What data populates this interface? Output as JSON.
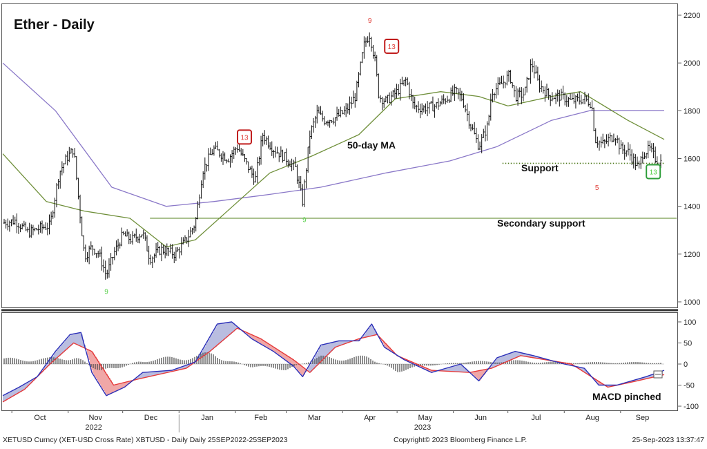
{
  "title": "Ether - Daily",
  "colors": {
    "bars": "#111111",
    "ma50": "#6f8f3a",
    "ma200": "#8a78c8",
    "support": "#4f7a1c",
    "secondary_support": "#5e8a2a",
    "td_sell": "#e0403a",
    "td_buy": "#58d04a",
    "macd_line": "#2b2fb8",
    "signal_line": "#e63b3b",
    "fill_up": "#b9bde0",
    "fill_down": "#f0a7a7",
    "hist": "#444444"
  },
  "footer": {
    "left": "XETUSD Curncy (XET-USD Cross Rate) XBTUSD - Daily  Daily 25SEP2022-25SEP2023",
    "center": "Copyright© 2023 Bloomberg Finance L.P.",
    "right": "25-Sep-2023 13:37:47"
  },
  "annotations": {
    "ma50": "50-day MA",
    "support": "Support",
    "secondary_support": "Secondary support",
    "macd": "MACD pinched"
  },
  "chart_data": [
    {
      "type": "candlestick",
      "title": "Ether - Daily",
      "x_axis": {
        "months": [
          "Oct",
          "Nov",
          "Dec",
          "Jan",
          "Feb",
          "Mar",
          "Apr",
          "May",
          "Jun",
          "Jul",
          "Aug",
          "Sep"
        ],
        "year_labels": [
          {
            "text": "2022",
            "under": "Nov"
          },
          {
            "text": "2023",
            "under": "May"
          }
        ]
      },
      "y_axis": {
        "ticks": [
          1000,
          1200,
          1400,
          1600,
          1800,
          2000,
          2200
        ],
        "range": [
          960,
          2240
        ],
        "side": "right"
      },
      "price_path": [
        {
          "date": "2022-09-26",
          "value": 1330
        },
        {
          "date": "2022-10-03",
          "value": 1340
        },
        {
          "date": "2022-10-10",
          "value": 1290
        },
        {
          "date": "2022-10-17",
          "value": 1310
        },
        {
          "date": "2022-10-22",
          "value": 1320
        },
        {
          "date": "2022-10-27",
          "value": 1540
        },
        {
          "date": "2022-10-31",
          "value": 1600
        },
        {
          "date": "2022-11-04",
          "value": 1640
        },
        {
          "date": "2022-11-08",
          "value": 1330
        },
        {
          "date": "2022-11-10",
          "value": 1190
        },
        {
          "date": "2022-11-14",
          "value": 1230
        },
        {
          "date": "2022-11-18",
          "value": 1200
        },
        {
          "date": "2022-11-22",
          "value": 1110
        },
        {
          "date": "2022-11-26",
          "value": 1200
        },
        {
          "date": "2022-12-01",
          "value": 1280
        },
        {
          "date": "2022-12-06",
          "value": 1260
        },
        {
          "date": "2022-12-12",
          "value": 1290
        },
        {
          "date": "2022-12-16",
          "value": 1180
        },
        {
          "date": "2022-12-22",
          "value": 1220
        },
        {
          "date": "2022-12-30",
          "value": 1200
        },
        {
          "date": "2023-01-05",
          "value": 1260
        },
        {
          "date": "2023-01-10",
          "value": 1330
        },
        {
          "date": "2023-01-14",
          "value": 1550
        },
        {
          "date": "2023-01-20",
          "value": 1640
        },
        {
          "date": "2023-01-28",
          "value": 1600
        },
        {
          "date": "2023-02-02",
          "value": 1650
        },
        {
          "date": "2023-02-09",
          "value": 1550
        },
        {
          "date": "2023-02-12",
          "value": 1510
        },
        {
          "date": "2023-02-16",
          "value": 1700
        },
        {
          "date": "2023-02-22",
          "value": 1640
        },
        {
          "date": "2023-03-01",
          "value": 1600
        },
        {
          "date": "2023-03-06",
          "value": 1560
        },
        {
          "date": "2023-03-10",
          "value": 1420
        },
        {
          "date": "2023-03-14",
          "value": 1700
        },
        {
          "date": "2023-03-18",
          "value": 1790
        },
        {
          "date": "2023-03-22",
          "value": 1760
        },
        {
          "date": "2023-03-28",
          "value": 1770
        },
        {
          "date": "2023-04-03",
          "value": 1800
        },
        {
          "date": "2023-04-08",
          "value": 1860
        },
        {
          "date": "2023-04-13",
          "value": 2080
        },
        {
          "date": "2023-04-16",
          "value": 2120
        },
        {
          "date": "2023-04-19",
          "value": 2000
        },
        {
          "date": "2023-04-21",
          "value": 1860
        },
        {
          "date": "2023-04-25",
          "value": 1840
        },
        {
          "date": "2023-05-01",
          "value": 1880
        },
        {
          "date": "2023-05-06",
          "value": 1930
        },
        {
          "date": "2023-05-10",
          "value": 1820
        },
        {
          "date": "2023-05-15",
          "value": 1810
        },
        {
          "date": "2023-05-22",
          "value": 1820
        },
        {
          "date": "2023-05-28",
          "value": 1850
        },
        {
          "date": "2023-06-02",
          "value": 1880
        },
        {
          "date": "2023-06-06",
          "value": 1850
        },
        {
          "date": "2023-06-10",
          "value": 1750
        },
        {
          "date": "2023-06-15",
          "value": 1650
        },
        {
          "date": "2023-06-20",
          "value": 1740
        },
        {
          "date": "2023-06-22",
          "value": 1880
        },
        {
          "date": "2023-06-26",
          "value": 1900
        },
        {
          "date": "2023-07-02",
          "value": 1950
        },
        {
          "date": "2023-07-05",
          "value": 1860
        },
        {
          "date": "2023-07-10",
          "value": 1870
        },
        {
          "date": "2023-07-14",
          "value": 2000
        },
        {
          "date": "2023-07-18",
          "value": 1910
        },
        {
          "date": "2023-07-24",
          "value": 1860
        },
        {
          "date": "2023-07-30",
          "value": 1860
        },
        {
          "date": "2023-08-05",
          "value": 1840
        },
        {
          "date": "2023-08-12",
          "value": 1850
        },
        {
          "date": "2023-08-16",
          "value": 1830
        },
        {
          "date": "2023-08-18",
          "value": 1680
        },
        {
          "date": "2023-08-22",
          "value": 1660
        },
        {
          "date": "2023-08-29",
          "value": 1700
        },
        {
          "date": "2023-09-01",
          "value": 1640
        },
        {
          "date": "2023-09-05",
          "value": 1630
        },
        {
          "date": "2023-09-11",
          "value": 1560
        },
        {
          "date": "2023-09-13",
          "value": 1620
        },
        {
          "date": "2023-09-17",
          "value": 1640
        },
        {
          "date": "2023-09-21",
          "value": 1590
        },
        {
          "date": "2023-09-25",
          "value": 1585
        }
      ],
      "ma50_path": [
        {
          "date": "2022-09-26",
          "value": 1620
        },
        {
          "date": "2022-10-20",
          "value": 1420
        },
        {
          "date": "2022-11-10",
          "value": 1380
        },
        {
          "date": "2022-12-05",
          "value": 1350
        },
        {
          "date": "2022-12-25",
          "value": 1230
        },
        {
          "date": "2023-01-10",
          "value": 1260
        },
        {
          "date": "2023-02-01",
          "value": 1410
        },
        {
          "date": "2023-02-20",
          "value": 1540
        },
        {
          "date": "2023-03-15",
          "value": 1610
        },
        {
          "date": "2023-04-10",
          "value": 1700
        },
        {
          "date": "2023-04-30",
          "value": 1850
        },
        {
          "date": "2023-05-25",
          "value": 1880
        },
        {
          "date": "2023-06-15",
          "value": 1860
        },
        {
          "date": "2023-07-01",
          "value": 1820
        },
        {
          "date": "2023-07-25",
          "value": 1860
        },
        {
          "date": "2023-08-10",
          "value": 1880
        },
        {
          "date": "2023-09-05",
          "value": 1760
        },
        {
          "date": "2023-09-25",
          "value": 1680
        }
      ],
      "ma200_path": [
        {
          "date": "2022-09-26",
          "value": 2000
        },
        {
          "date": "2022-10-25",
          "value": 1800
        },
        {
          "date": "2022-11-25",
          "value": 1480
        },
        {
          "date": "2022-12-25",
          "value": 1400
        },
        {
          "date": "2023-01-20",
          "value": 1420
        },
        {
          "date": "2023-02-20",
          "value": 1450
        },
        {
          "date": "2023-03-20",
          "value": 1480
        },
        {
          "date": "2023-04-25",
          "value": 1540
        },
        {
          "date": "2023-05-30",
          "value": 1590
        },
        {
          "date": "2023-06-25",
          "value": 1650
        },
        {
          "date": "2023-07-25",
          "value": 1760
        },
        {
          "date": "2023-08-15",
          "value": 1800
        },
        {
          "date": "2023-09-25",
          "value": 1800
        }
      ],
      "levels": [
        {
          "label": "Support",
          "value": 1580,
          "style": "dotted",
          "from": "2023-06-28"
        },
        {
          "label": "Secondary support",
          "value": 1350,
          "style": "solid",
          "from": "2022-12-16"
        }
      ],
      "td_sequential_markers": [
        {
          "label": "13",
          "date": "2023-02-06",
          "value": 1690,
          "color": "sell",
          "boxed": true
        },
        {
          "label": "13",
          "date": "2023-04-28",
          "value": 2070,
          "color": "sell",
          "boxed": true
        },
        {
          "label": "13",
          "date": "2023-09-19",
          "value": 1545,
          "color": "buy",
          "boxed": true
        },
        {
          "label": "9",
          "date": "2023-04-16",
          "value": 2180,
          "color": "sell",
          "boxed": false
        },
        {
          "label": "9",
          "date": "2022-11-22",
          "value": 1045,
          "color": "buy",
          "boxed": false
        },
        {
          "label": "9",
          "date": "2023-03-11",
          "value": 1345,
          "color": "buy",
          "boxed": false
        },
        {
          "label": "5",
          "date": "2023-08-19",
          "value": 1480,
          "color": "sell",
          "boxed": false
        }
      ]
    },
    {
      "type": "line",
      "title": "",
      "y_axis": {
        "ticks": [
          100,
          50,
          0,
          -50,
          -100
        ],
        "range": [
          -115,
          115
        ],
        "side": "right"
      },
      "series": [
        {
          "name": "",
          "role": "macd",
          "points": [
            {
              "date": "2022-09-26",
              "value": -75
            },
            {
              "date": "2022-10-05",
              "value": -55
            },
            {
              "date": "2022-10-15",
              "value": -30
            },
            {
              "date": "2022-10-25",
              "value": 30
            },
            {
              "date": "2022-11-02",
              "value": 70
            },
            {
              "date": "2022-11-08",
              "value": 75
            },
            {
              "date": "2022-11-14",
              "value": -20
            },
            {
              "date": "2022-11-22",
              "value": -75
            },
            {
              "date": "2022-12-02",
              "value": -55
            },
            {
              "date": "2022-12-12",
              "value": -20
            },
            {
              "date": "2022-12-28",
              "value": -15
            },
            {
              "date": "2023-01-10",
              "value": 5
            },
            {
              "date": "2023-01-22",
              "value": 95
            },
            {
              "date": "2023-01-30",
              "value": 100
            },
            {
              "date": "2023-02-10",
              "value": 60
            },
            {
              "date": "2023-02-22",
              "value": 30
            },
            {
              "date": "2023-03-05",
              "value": -5
            },
            {
              "date": "2023-03-10",
              "value": -30
            },
            {
              "date": "2023-03-20",
              "value": 45
            },
            {
              "date": "2023-03-30",
              "value": 55
            },
            {
              "date": "2023-04-10",
              "value": 55
            },
            {
              "date": "2023-04-17",
              "value": 95
            },
            {
              "date": "2023-04-24",
              "value": 40
            },
            {
              "date": "2023-05-05",
              "value": 10
            },
            {
              "date": "2023-05-20",
              "value": -20
            },
            {
              "date": "2023-06-05",
              "value": 0
            },
            {
              "date": "2023-06-15",
              "value": -40
            },
            {
              "date": "2023-06-25",
              "value": 15
            },
            {
              "date": "2023-07-05",
              "value": 30
            },
            {
              "date": "2023-07-15",
              "value": 20
            },
            {
              "date": "2023-08-01",
              "value": 0
            },
            {
              "date": "2023-08-12",
              "value": -10
            },
            {
              "date": "2023-08-20",
              "value": -50
            },
            {
              "date": "2023-08-30",
              "value": -50
            },
            {
              "date": "2023-09-15",
              "value": -30
            },
            {
              "date": "2023-09-25",
              "value": -15
            }
          ]
        },
        {
          "name": "",
          "role": "signal",
          "points": [
            {
              "date": "2022-09-26",
              "value": -90
            },
            {
              "date": "2022-10-08",
              "value": -60
            },
            {
              "date": "2022-10-22",
              "value": 0
            },
            {
              "date": "2022-11-04",
              "value": 50
            },
            {
              "date": "2022-11-14",
              "value": 30
            },
            {
              "date": "2022-11-26",
              "value": -50
            },
            {
              "date": "2022-12-10",
              "value": -35
            },
            {
              "date": "2023-01-05",
              "value": -10
            },
            {
              "date": "2023-01-18",
              "value": 30
            },
            {
              "date": "2023-02-02",
              "value": 85
            },
            {
              "date": "2023-02-15",
              "value": 60
            },
            {
              "date": "2023-03-05",
              "value": 10
            },
            {
              "date": "2023-03-14",
              "value": -20
            },
            {
              "date": "2023-03-28",
              "value": 40
            },
            {
              "date": "2023-04-10",
              "value": 60
            },
            {
              "date": "2023-04-20",
              "value": 70
            },
            {
              "date": "2023-05-01",
              "value": 20
            },
            {
              "date": "2023-05-20",
              "value": -15
            },
            {
              "date": "2023-06-10",
              "value": -20
            },
            {
              "date": "2023-06-22",
              "value": -10
            },
            {
              "date": "2023-07-08",
              "value": 20
            },
            {
              "date": "2023-08-05",
              "value": 0
            },
            {
              "date": "2023-08-25",
              "value": -55
            },
            {
              "date": "2023-09-10",
              "value": -40
            },
            {
              "date": "2023-09-25",
              "value": -25
            }
          ]
        },
        {
          "name": "",
          "role": "histogram",
          "type": "bar",
          "points": [
            {
              "date": "2022-10-20",
              "value": 15
            },
            {
              "date": "2022-11-05",
              "value": 25
            },
            {
              "date": "2022-11-20",
              "value": -30
            },
            {
              "date": "2022-12-10",
              "value": 10
            },
            {
              "date": "2023-01-20",
              "value": 30
            },
            {
              "date": "2023-02-10",
              "value": -10
            },
            {
              "date": "2023-03-01",
              "value": -15
            },
            {
              "date": "2023-03-20",
              "value": 20
            },
            {
              "date": "2023-04-15",
              "value": 20
            },
            {
              "date": "2023-05-01",
              "value": -20
            },
            {
              "date": "2023-06-01",
              "value": 5
            },
            {
              "date": "2023-07-01",
              "value": 10
            },
            {
              "date": "2023-08-01",
              "value": 5
            },
            {
              "date": "2023-08-20",
              "value": 5
            },
            {
              "date": "2023-09-20",
              "value": 5
            }
          ]
        }
      ]
    }
  ]
}
